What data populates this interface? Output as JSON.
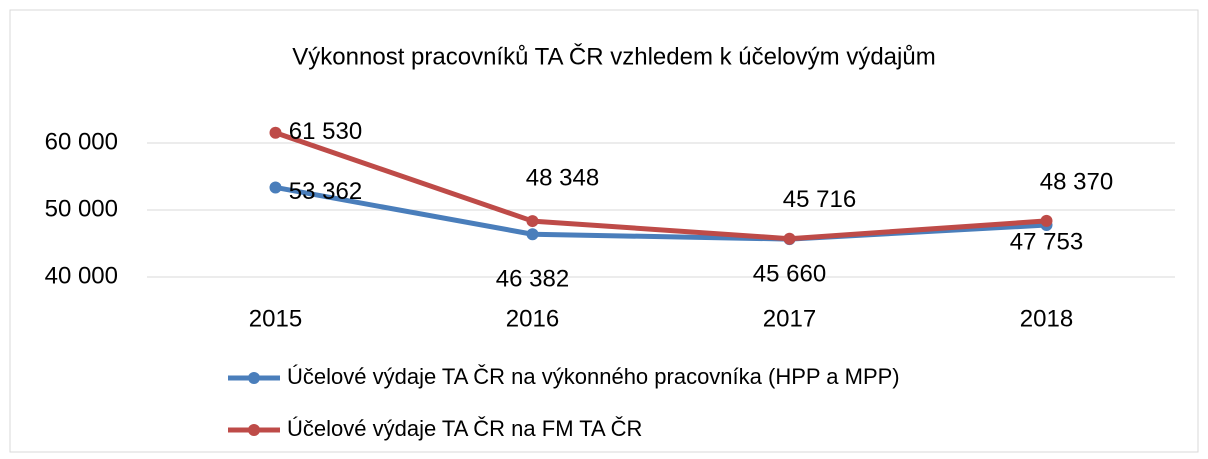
{
  "chart_data": {
    "type": "line",
    "title": "Výkonnost pracovníků TA ČR vzhledem k účelovým výdajům",
    "categories": [
      "2015",
      "2016",
      "2017",
      "2018"
    ],
    "series": [
      {
        "name": "Účelové výdaje TA ČR na výkonného pracovníka (HPP a MPP)",
        "color": "#4a7ebb",
        "values": [
          53362,
          46382,
          45660,
          47753
        ],
        "value_labels": [
          "53 362",
          "46 382",
          "45 660",
          "47 753"
        ]
      },
      {
        "name": "Účelové výdaje TA ČR na FM TA ČR",
        "color": "#be4b48",
        "values": [
          61530,
          48348,
          45716,
          48370
        ],
        "value_labels": [
          "61 530",
          "48 348",
          "45 716",
          "48 370"
        ]
      }
    ],
    "ylim": [
      40000,
      60000
    ],
    "yticks": [
      {
        "value": 40000,
        "label": "40 000"
      },
      {
        "value": 50000,
        "label": "50 000"
      },
      {
        "value": 60000,
        "label": "60 000"
      }
    ],
    "grid": true
  }
}
